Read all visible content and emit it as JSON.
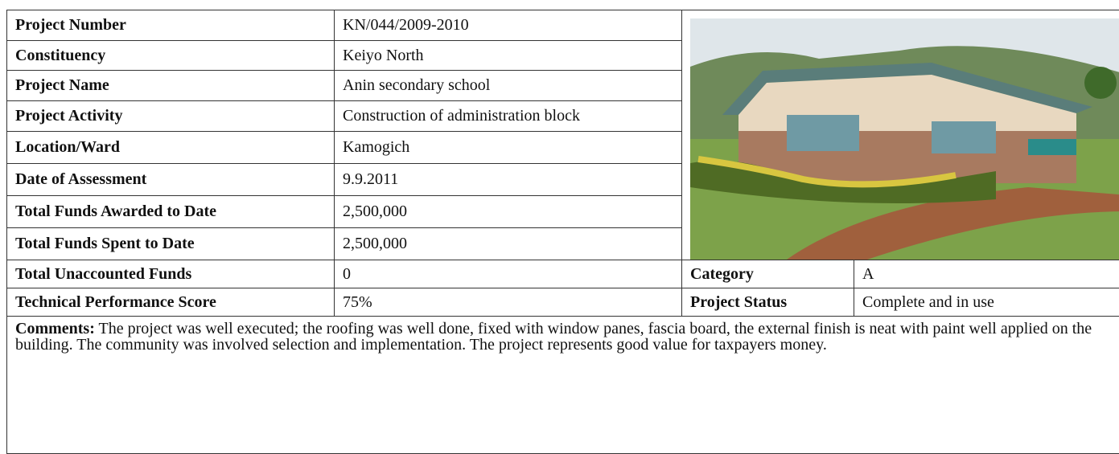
{
  "table": {
    "rows": [
      {
        "label": "Project Number",
        "value": "KN/044/2009-2010"
      },
      {
        "label": "Constituency",
        "value": "Keiyo North"
      },
      {
        "label": "Project Name",
        "value": "Anin secondary school"
      },
      {
        "label": "Project Activity",
        "value": "Construction of administration block"
      },
      {
        "label": "Location/Ward",
        "value": "Kamogich"
      },
      {
        "label": "Date of Assessment",
        "value": "9.9.2011"
      },
      {
        "label": "Total Funds Awarded to Date",
        "value": "2,500,000"
      },
      {
        "label": "Total Funds Spent to Date",
        "value": "2,500,000"
      },
      {
        "label": "Total Unaccounted Funds",
        "value": "0"
      },
      {
        "label": "Technical Performance Score",
        "value": "75%"
      }
    ],
    "category": {
      "label": "Category",
      "value": "A"
    },
    "status": {
      "label": "Project Status",
      "value": "Complete and in use"
    },
    "comments": {
      "label": "Comments:",
      "text": "The project was well executed; the roofing was well done, fixed with window panes, fascia board, the external finish is neat with paint well applied on the building. The community was involved selection and implementation. The project represents good value for taxpayers money."
    }
  }
}
